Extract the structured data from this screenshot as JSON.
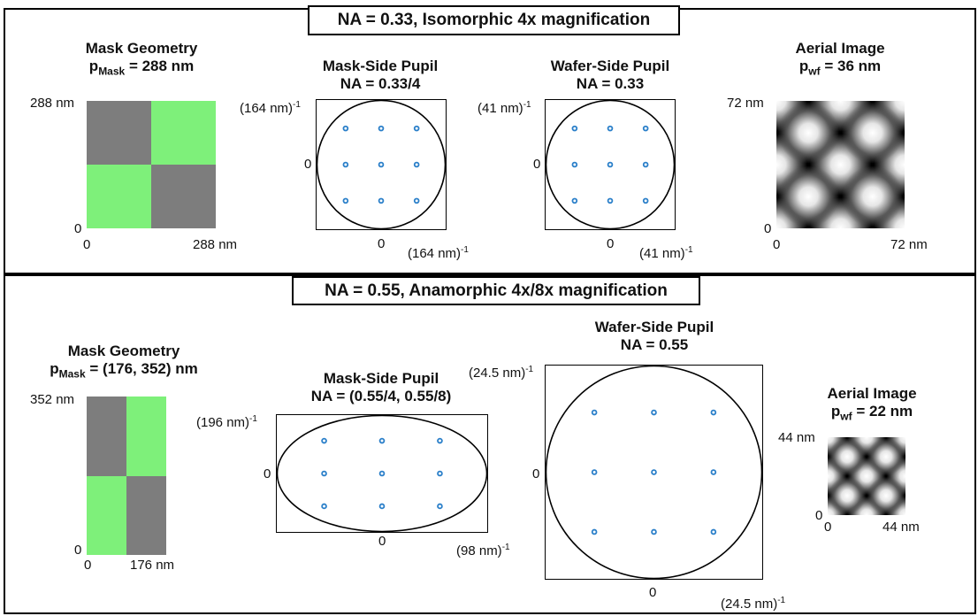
{
  "colors": {
    "green": "#7ef07a",
    "gray": "#7d7d7d",
    "dot": "#2a7fc9"
  },
  "top": {
    "banner": "NA = 0.33, Isomorphic 4x magnification",
    "mask": {
      "title": "Mask Geometry",
      "p_main": "p",
      "p_sub": "Mask",
      "p_value": " = 288 nm",
      "y_max": "288 nm",
      "y_min": "0",
      "x_min": "0",
      "x_max": "288 nm"
    },
    "mask_pupil": {
      "title": "Mask-Side Pupil",
      "na": "NA = 0.33/4",
      "y_label": "(164 nm)",
      "y_zero": "0",
      "x_zero": "0",
      "x_label": "(164 nm)",
      "exp": "-1"
    },
    "wafer_pupil": {
      "title": "Wafer-Side Pupil",
      "na": "NA = 0.33",
      "y_label": "(41 nm)",
      "y_zero": "0",
      "x_zero": "0",
      "x_label": "(41 nm)",
      "exp": "-1"
    },
    "aerial": {
      "title": "Aerial Image",
      "p_main": "p",
      "p_sub": "wf",
      "p_value": " = 36 nm",
      "y_max": "72 nm",
      "y_min": "0",
      "x_min": "0",
      "x_max": "72 nm"
    }
  },
  "bottom": {
    "banner": "NA = 0.55, Anamorphic 4x/8x magnification",
    "mask": {
      "title": "Mask Geometry",
      "p_main": "p",
      "p_sub": "Mask",
      "p_value": " = (176, 352) nm",
      "y_max": "352 nm",
      "y_min": "0",
      "x_min": "0",
      "x_max": "176 nm"
    },
    "mask_pupil": {
      "title": "Mask-Side Pupil",
      "na": "NA = (0.55/4, 0.55/8)",
      "y_label": "(196 nm)",
      "y_zero": "0",
      "x_zero": "0",
      "x_label": "(98 nm)",
      "exp": "-1"
    },
    "wafer_pupil": {
      "title": "Wafer-Side Pupil",
      "na": "NA = 0.55",
      "y_label": "(24.5 nm)",
      "y_zero": "0",
      "x_zero": "0",
      "x_label": "(24.5 nm)",
      "exp": "-1"
    },
    "aerial": {
      "title": "Aerial Image",
      "p_main": "p",
      "p_sub": "wf",
      "p_value": " = 22 nm",
      "y_max": "44 nm",
      "y_min": "0",
      "x_min": "0",
      "x_max": "44 nm"
    }
  }
}
